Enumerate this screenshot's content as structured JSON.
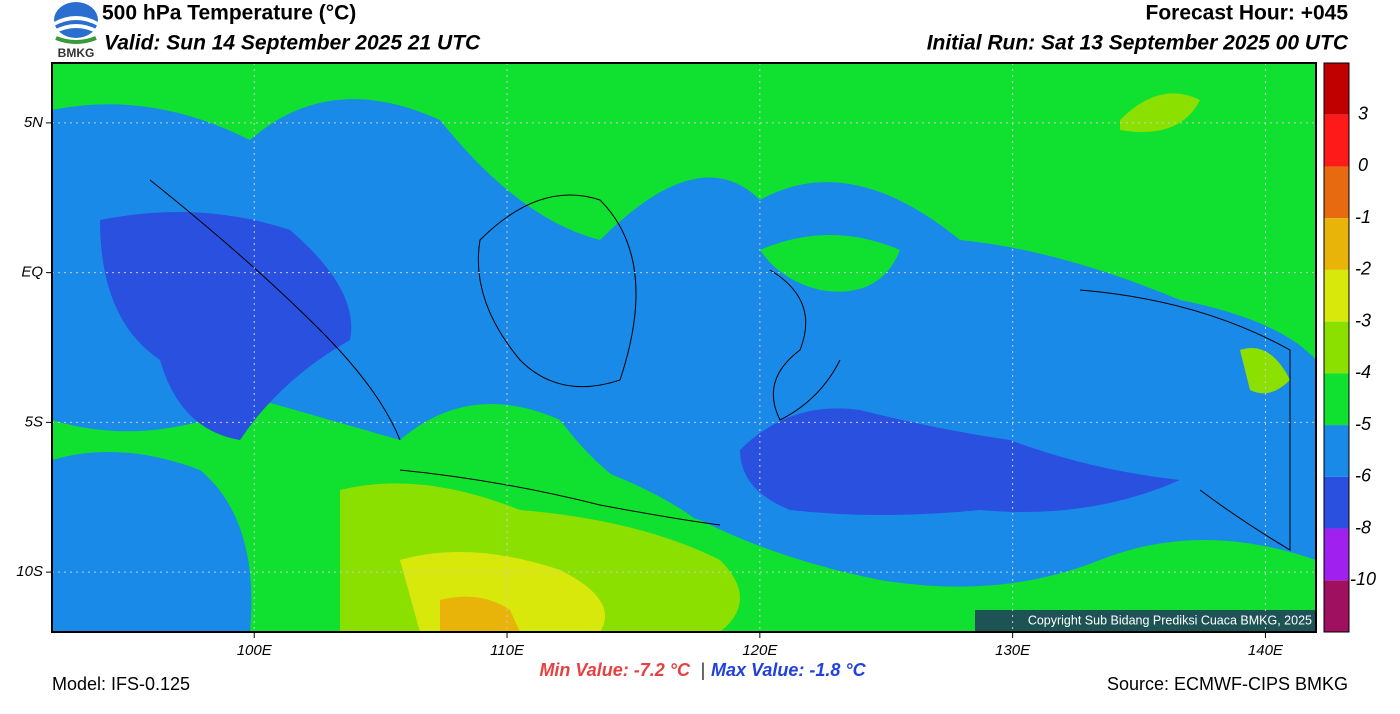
{
  "header": {
    "title": "500 hPa Temperature (°C)",
    "valid": "Valid: Sun 14 September 2025 21 UTC",
    "forecast_hour": "Forecast Hour: +045",
    "initial_run": "Initial Run: Sat 13 September 2025 00 UTC",
    "logo_text": "BMKG"
  },
  "map": {
    "xlim": [
      92,
      142
    ],
    "ylim": [
      -12,
      7
    ],
    "xticks": [
      {
        "value": 100,
        "label": "100E"
      },
      {
        "value": 110,
        "label": "110E"
      },
      {
        "value": 120,
        "label": "120E"
      },
      {
        "value": 130,
        "label": "130E"
      },
      {
        "value": 140,
        "label": "140E"
      }
    ],
    "yticks": [
      {
        "value": 5,
        "label": "5N"
      },
      {
        "value": 0,
        "label": "EQ"
      },
      {
        "value": -5,
        "label": "5S"
      },
      {
        "value": -10,
        "label": "10S"
      }
    ],
    "copyright": "Copyright Sub Bidang Prediksi Cuaca BMKG, 2025"
  },
  "colorbar": {
    "colors": [
      "#c00000",
      "#ff1a1a",
      "#e86a10",
      "#e8b40a",
      "#d8e80a",
      "#8ce000",
      "#10e030",
      "#1a8ae8",
      "#2a50e0",
      "#a020f0",
      "#a01060"
    ],
    "ticks": [
      3,
      0,
      -1,
      -2,
      -3,
      -4,
      -5,
      -6,
      -8,
      -10
    ]
  },
  "footer": {
    "min_value": "Min Value: -7.2 °C",
    "separator": "|",
    "max_value": "Max Value: -1.8 °C",
    "model": "Model: IFS-0.125",
    "source": "Source: ECMWF-CIPS BMKG"
  }
}
